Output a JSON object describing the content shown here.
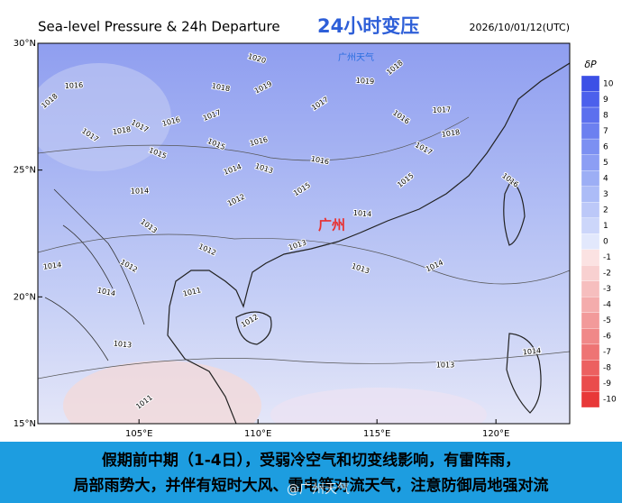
{
  "header": {
    "title": "Sea-level Pressure & 24h Departure",
    "title_cn": "24小时变压",
    "time": "2026/10/01/12(UTC)",
    "watermark": "广州天气"
  },
  "map": {
    "xlim": [
      100.75,
      123.1
    ],
    "ylim": [
      15,
      30
    ],
    "lon_ticks": [
      {
        "value": 105,
        "label": "105°E"
      },
      {
        "value": 110,
        "label": "110°E"
      },
      {
        "value": 115,
        "label": "115°E"
      },
      {
        "value": 120,
        "label": "120°E"
      }
    ],
    "lat_ticks": [
      {
        "value": 30,
        "label": "30°N"
      },
      {
        "value": 25,
        "label": "25°N"
      },
      {
        "value": 20,
        "label": "20°N"
      },
      {
        "value": 15,
        "label": "15°N"
      }
    ],
    "city_label": "广州",
    "isobar_labels": [
      "1018",
      "1016",
      "1017",
      "1018",
      "1017",
      "1016",
      "1015",
      "1017",
      "1020",
      "1019",
      "1018",
      "1017",
      "1019",
      "1018",
      "1017",
      "1016",
      "1018",
      "1017",
      "1016",
      "1015",
      "1014",
      "1013",
      "1012",
      "1016",
      "1015",
      "1014",
      "1015",
      "1014",
      "1013",
      "1014",
      "1012",
      "1011",
      "1012",
      "1013",
      "1013",
      "1014",
      "1014",
      "1012",
      "1013",
      "1011",
      "1013",
      "1016",
      "1014"
    ]
  },
  "colorbar": {
    "label": "δP",
    "ticks": [
      10,
      9,
      8,
      7,
      6,
      5,
      4,
      3,
      2,
      1,
      0,
      -1,
      -2,
      -3,
      -4,
      -5,
      -6,
      -7,
      -8,
      -9,
      -10
    ],
    "colors": [
      "#3c50e6",
      "#4c60ec",
      "#5c70ee",
      "#6c80f0",
      "#7c90f2",
      "#8c9ef4",
      "#9caef5",
      "#acbcf7",
      "#bcc8f8",
      "#ccd6fa",
      "#e2e8fc",
      "#fbe2e2",
      "#f8d0d0",
      "#f6bebe",
      "#f4acac",
      "#f29a9a",
      "#f08888",
      "#ee7474",
      "#ec6060",
      "#ea4c4c",
      "#e83838"
    ]
  },
  "caption": {
    "lines": [
      "假期前中期（1-4日），受弱冷空气和切变线影响，有雷阵雨，",
      "局部雨势大，并伴有短时大风、雷电等对流天气，注意防御局地强对流"
    ],
    "watermark": "@广州天气"
  }
}
